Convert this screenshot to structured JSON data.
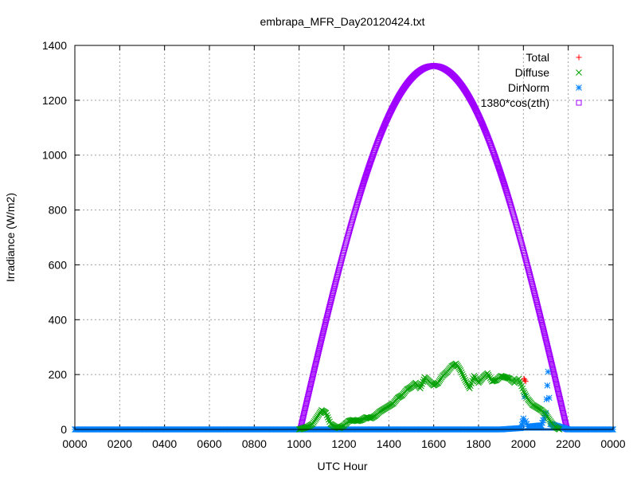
{
  "chart_data": {
    "type": "scatter",
    "title": "embrapa_MFR_Day20120424.txt",
    "xlabel": "UTC Hour",
    "ylabel": "Irradiance (W/m2)",
    "xlim": [
      0,
      24
    ],
    "ylim": [
      0,
      1400
    ],
    "x_ticks": [
      {
        "value": 0,
        "label": "0000"
      },
      {
        "value": 2,
        "label": "0200"
      },
      {
        "value": 4,
        "label": "0400"
      },
      {
        "value": 6,
        "label": "0600"
      },
      {
        "value": 8,
        "label": "0800"
      },
      {
        "value": 10,
        "label": "1000"
      },
      {
        "value": 12,
        "label": "1200"
      },
      {
        "value": 14,
        "label": "1400"
      },
      {
        "value": 16,
        "label": "1600"
      },
      {
        "value": 18,
        "label": "1800"
      },
      {
        "value": 20,
        "label": "2000"
      },
      {
        "value": 22,
        "label": "2200"
      },
      {
        "value": 24,
        "label": "0000"
      }
    ],
    "y_ticks": [
      {
        "value": 0,
        "label": "0"
      },
      {
        "value": 200,
        "label": "200"
      },
      {
        "value": 400,
        "label": "400"
      },
      {
        "value": 600,
        "label": "600"
      },
      {
        "value": 800,
        "label": "800"
      },
      {
        "value": 1000,
        "label": "1000"
      },
      {
        "value": 1200,
        "label": "1200"
      },
      {
        "value": 1400,
        "label": "1400"
      }
    ],
    "grid": true,
    "legend_position": "top-right",
    "series": [
      {
        "name": "Total",
        "marker": "plus",
        "color": "#ff0000",
        "points": [
          [
            10.0,
            0
          ],
          [
            10.2,
            5
          ],
          [
            10.4,
            10
          ],
          [
            10.6,
            20
          ],
          [
            10.8,
            45
          ],
          [
            11.0,
            70
          ],
          [
            11.2,
            60
          ],
          [
            11.4,
            20
          ],
          [
            11.6,
            10
          ],
          [
            11.8,
            5
          ],
          [
            12.0,
            15
          ],
          [
            12.2,
            30
          ],
          [
            12.4,
            35
          ],
          [
            12.6,
            30
          ],
          [
            12.8,
            35
          ],
          [
            13.0,
            45
          ],
          [
            13.2,
            40
          ],
          [
            13.4,
            50
          ],
          [
            13.6,
            65
          ],
          [
            13.8,
            75
          ],
          [
            14.0,
            85
          ],
          [
            14.2,
            95
          ],
          [
            14.4,
            115
          ],
          [
            14.6,
            125
          ],
          [
            14.8,
            145
          ],
          [
            15.0,
            155
          ],
          [
            15.2,
            170
          ],
          [
            15.4,
            150
          ],
          [
            15.6,
            190
          ],
          [
            15.8,
            175
          ],
          [
            16.0,
            160
          ],
          [
            16.2,
            170
          ],
          [
            16.4,
            195
          ],
          [
            16.6,
            210
          ],
          [
            16.8,
            230
          ],
          [
            17.0,
            240
          ],
          [
            17.2,
            215
          ],
          [
            17.4,
            180
          ],
          [
            17.6,
            150
          ],
          [
            17.8,
            195
          ],
          [
            18.0,
            170
          ],
          [
            18.2,
            190
          ],
          [
            18.4,
            205
          ],
          [
            18.6,
            175
          ],
          [
            18.8,
            180
          ],
          [
            19.0,
            195
          ],
          [
            19.2,
            190
          ],
          [
            19.4,
            185
          ],
          [
            19.6,
            170
          ],
          [
            19.8,
            185
          ],
          [
            20.0,
            140
          ],
          [
            20.2,
            110
          ],
          [
            20.4,
            90
          ],
          [
            20.6,
            80
          ],
          [
            20.8,
            70
          ],
          [
            21.0,
            55
          ],
          [
            21.2,
            30
          ],
          [
            21.4,
            10
          ],
          [
            21.6,
            0
          ],
          [
            20.03,
            185
          ],
          [
            20.06,
            180
          ],
          [
            20.1,
            175
          ]
        ]
      },
      {
        "name": "Diffuse",
        "marker": "cross",
        "color": "#00a000",
        "points": [
          [
            10.0,
            0
          ],
          [
            10.2,
            5
          ],
          [
            10.4,
            10
          ],
          [
            10.6,
            20
          ],
          [
            10.8,
            45
          ],
          [
            11.0,
            70
          ],
          [
            11.2,
            60
          ],
          [
            11.4,
            20
          ],
          [
            11.6,
            10
          ],
          [
            11.8,
            5
          ],
          [
            12.0,
            15
          ],
          [
            12.2,
            30
          ],
          [
            12.4,
            35
          ],
          [
            12.6,
            30
          ],
          [
            12.8,
            35
          ],
          [
            13.0,
            45
          ],
          [
            13.2,
            40
          ],
          [
            13.4,
            50
          ],
          [
            13.6,
            65
          ],
          [
            13.8,
            75
          ],
          [
            14.0,
            85
          ],
          [
            14.2,
            95
          ],
          [
            14.4,
            115
          ],
          [
            14.6,
            125
          ],
          [
            14.8,
            145
          ],
          [
            15.0,
            155
          ],
          [
            15.2,
            170
          ],
          [
            15.4,
            150
          ],
          [
            15.6,
            190
          ],
          [
            15.8,
            175
          ],
          [
            16.0,
            160
          ],
          [
            16.2,
            170
          ],
          [
            16.4,
            195
          ],
          [
            16.6,
            210
          ],
          [
            16.8,
            230
          ],
          [
            17.0,
            240
          ],
          [
            17.2,
            215
          ],
          [
            17.4,
            180
          ],
          [
            17.6,
            150
          ],
          [
            17.8,
            195
          ],
          [
            18.0,
            170
          ],
          [
            18.2,
            190
          ],
          [
            18.4,
            205
          ],
          [
            18.6,
            175
          ],
          [
            18.8,
            180
          ],
          [
            19.0,
            195
          ],
          [
            19.2,
            190
          ],
          [
            19.4,
            185
          ],
          [
            19.6,
            170
          ],
          [
            19.8,
            185
          ],
          [
            20.0,
            140
          ],
          [
            20.2,
            110
          ],
          [
            20.4,
            90
          ],
          [
            20.6,
            80
          ],
          [
            20.8,
            70
          ],
          [
            21.0,
            55
          ],
          [
            21.2,
            30
          ],
          [
            21.4,
            10
          ],
          [
            21.6,
            0
          ]
        ]
      },
      {
        "name": "DirNorm",
        "marker": "star",
        "color": "#0080ff",
        "points": [
          [
            0,
            0
          ],
          [
            1,
            0
          ],
          [
            2,
            0
          ],
          [
            3,
            0
          ],
          [
            4,
            0
          ],
          [
            5,
            0
          ],
          [
            6,
            0
          ],
          [
            7,
            0
          ],
          [
            8,
            0
          ],
          [
            9,
            0
          ],
          [
            10,
            0
          ],
          [
            11,
            0
          ],
          [
            12,
            0
          ],
          [
            13,
            0
          ],
          [
            14,
            0
          ],
          [
            15,
            0
          ],
          [
            16,
            0
          ],
          [
            17,
            0
          ],
          [
            18,
            0
          ],
          [
            19,
            0
          ],
          [
            19.9,
            5
          ],
          [
            20.0,
            40
          ],
          [
            20.05,
            120
          ],
          [
            20.1,
            30
          ],
          [
            20.2,
            10
          ],
          [
            20.8,
            15
          ],
          [
            21.0,
            60
          ],
          [
            21.1,
            210
          ],
          [
            21.2,
            20
          ],
          [
            22,
            0
          ],
          [
            23,
            0
          ],
          [
            24,
            0
          ]
        ]
      },
      {
        "name": "1380*cos(zth)",
        "marker": "square",
        "color": "#a000ff",
        "amplitude": 1325,
        "day_start": 10.05,
        "day_end": 21.95
      }
    ]
  }
}
